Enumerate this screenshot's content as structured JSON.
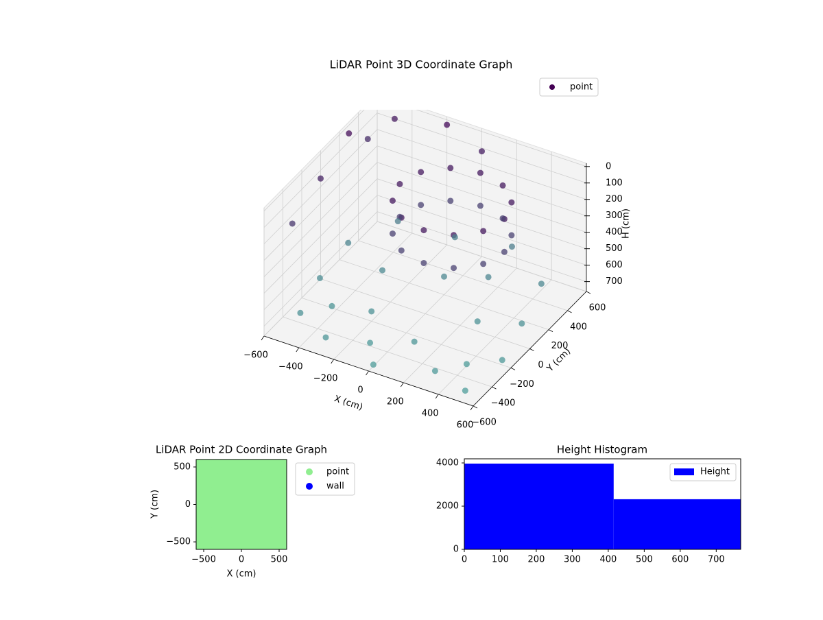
{
  "chart_data": [
    {
      "type": "scatter3d",
      "title": "LiDAR Point 3D Coordinate Graph",
      "xlabel": "X (cm)",
      "ylabel": "Y (cm)",
      "zlabel": "H (cm)",
      "xlim": [
        -600,
        600
      ],
      "ylim": [
        -600,
        600
      ],
      "zlim": [
        -20,
        760
      ],
      "z_inverted": true,
      "xticks": [
        {
          "value": -600,
          "label": "−600"
        },
        {
          "value": -400,
          "label": "−400"
        },
        {
          "value": -200,
          "label": "−200"
        },
        0,
        200,
        400,
        600
      ],
      "yticks": [
        {
          "value": -600,
          "label": "−600"
        },
        {
          "value": -400,
          "label": "−400"
        },
        {
          "value": -200,
          "label": "−200"
        },
        0,
        200,
        400,
        600
      ],
      "zticks": [
        0,
        100,
        200,
        300,
        400,
        500,
        600,
        700
      ],
      "colormap": [
        "#440154",
        "#4f9e9b"
      ],
      "legend": "upper right",
      "series": [
        {
          "name": "point",
          "color": "#440154",
          "x": [
            400,
            360,
            250,
            100,
            -50,
            -160,
            -200,
            -160,
            -50,
            100,
            250,
            360,
            400,
            360,
            250,
            100,
            -50,
            -160,
            -200,
            -160,
            -50,
            100,
            250,
            360,
            -500,
            -300,
            0,
            300,
            500,
            550,
            500,
            450,
            200,
            -100,
            -400,
            -550,
            -550,
            -200,
            100,
            300,
            0,
            -300,
            200,
            -100,
            400,
            -400,
            -600,
            -600,
            -500,
            -200,
            0,
            -600,
            -600
          ],
          "y": [
            100,
            250,
            360,
            400,
            360,
            250,
            100,
            -50,
            -160,
            -200,
            -160,
            -50,
            100,
            250,
            360,
            400,
            360,
            250,
            100,
            -50,
            -160,
            -200,
            -160,
            -50,
            -400,
            -500,
            -550,
            -450,
            -500,
            -200,
            100,
            400,
            550,
            500,
            450,
            200,
            -100,
            -200,
            -300,
            0,
            200,
            100,
            300,
            -400,
            -300,
            -250,
            300,
            0,
            600,
            600,
            600,
            -300,
            500
          ],
          "z": [
            100,
            100,
            100,
            100,
            100,
            100,
            100,
            100,
            100,
            100,
            100,
            100,
            300,
            300,
            300,
            300,
            300,
            300,
            300,
            300,
            300,
            300,
            300,
            300,
            700,
            720,
            750,
            740,
            760,
            730,
            700,
            650,
            600,
            620,
            600,
            640,
            680,
            700,
            720,
            700,
            650,
            660,
            640,
            740,
            750,
            710,
            50,
            150,
            100,
            30,
            120,
            250,
            200
          ]
        }
      ]
    },
    {
      "type": "scatter",
      "title": "LiDAR Point 2D Coordinate Graph",
      "xlabel": "X (cm)",
      "ylabel": "Y (cm)",
      "xlim": [
        -600,
        600
      ],
      "ylim": [
        -600,
        600
      ],
      "xticks": [
        {
          "value": -500,
          "label": "−500"
        },
        0,
        500
      ],
      "yticks": [
        {
          "value": -500,
          "label": "−500"
        },
        0,
        500
      ],
      "legend": "outside upper right",
      "series": [
        {
          "name": "point",
          "color": "#90ee90",
          "x": [
            -540,
            -360,
            -180,
            0,
            180,
            360,
            540,
            -540,
            -360,
            -180,
            0,
            180,
            360,
            540,
            -540,
            -360,
            -180,
            0,
            180,
            360,
            540,
            -540,
            -360,
            -180,
            0,
            180,
            360,
            540,
            -540,
            -360,
            -180,
            0,
            180,
            360,
            540,
            -540,
            -360,
            -180,
            0,
            180,
            360,
            540,
            -540,
            -360,
            -180,
            0,
            180,
            360,
            540
          ],
          "y": [
            -540,
            -540,
            -540,
            -540,
            -540,
            -540,
            -540,
            -360,
            -360,
            -360,
            -360,
            -360,
            -360,
            -360,
            -180,
            -180,
            -180,
            -180,
            -180,
            -180,
            -180,
            0,
            0,
            0,
            0,
            0,
            0,
            0,
            180,
            180,
            180,
            180,
            180,
            180,
            180,
            360,
            360,
            360,
            360,
            360,
            360,
            360,
            540,
            540,
            540,
            540,
            540,
            540,
            540
          ]
        },
        {
          "name": "wall",
          "color": "#0000ff",
          "x": [],
          "y": []
        }
      ]
    },
    {
      "type": "histogram",
      "title": "Height Histogram",
      "label": "Height",
      "color": "#0000ff",
      "legend": "upper right",
      "bins": [
        0,
        415,
        768
      ],
      "counts": [
        3970,
        2320
      ],
      "xlim": [
        0,
        768
      ],
      "ylim": [
        0,
        4190
      ],
      "xticks": [
        0,
        100,
        200,
        300,
        400,
        500,
        600,
        700
      ],
      "yticks": [
        0,
        2000,
        4000
      ]
    }
  ]
}
